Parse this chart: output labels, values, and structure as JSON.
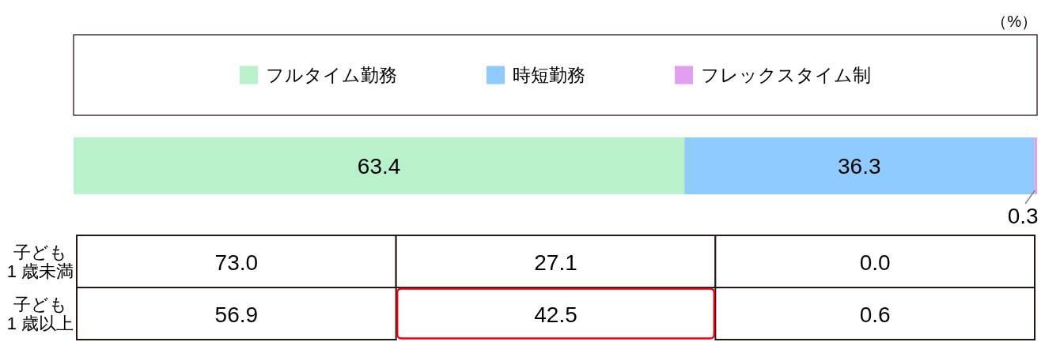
{
  "chart_data": [
    {
      "type": "bar",
      "orientation": "horizontal",
      "stacked": true,
      "categories": [
        null
      ],
      "series": [
        {
          "name": "フルタイム勤務",
          "color": "#b8f1cc",
          "values": [
            63.4
          ]
        },
        {
          "name": "時短勤務",
          "color": "#8fcbfe",
          "values": [
            36.3
          ]
        },
        {
          "name": "フレックスタイム制",
          "color": "#e0a0ef",
          "values": [
            0.3
          ]
        }
      ],
      "data_labels": true,
      "legend": "top",
      "annotations": [
        "（%）"
      ]
    },
    {
      "type": "heatmap",
      "categories": [
        null,
        null,
        null
      ],
      "y_categories": [
        "子ども\n1 歳未満",
        "子ども\n1 歳以上"
      ],
      "cells": [
        [
          73.0,
          27.1,
          0.0
        ],
        [
          56.9,
          42.5,
          0.6
        ]
      ],
      "cell_labels": [
        [
          "73.0",
          "27.1",
          "0.0"
        ],
        [
          "56.9",
          "42.5",
          "0.6"
        ]
      ],
      "data_labels": true
    }
  ]
}
